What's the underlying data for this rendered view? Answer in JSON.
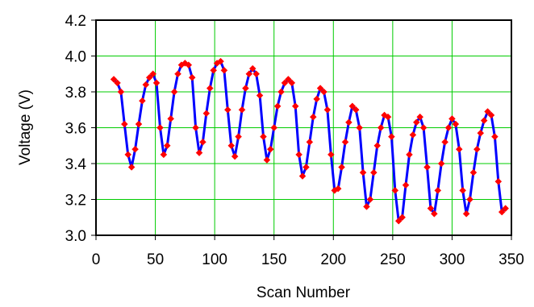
{
  "chart_data": {
    "type": "scatter",
    "title": "",
    "xlabel": "Scan Number",
    "ylabel": "Voltage (V)",
    "xlim": [
      0,
      350
    ],
    "ylim": [
      3.0,
      4.2
    ],
    "xticks": [
      "0",
      "50",
      "100",
      "150",
      "200",
      "250",
      "300",
      "350"
    ],
    "yticks": [
      "3.0",
      "3.2",
      "3.4",
      "3.6",
      "3.8",
      "4.0",
      "4.2"
    ],
    "grid": true,
    "legend": "none",
    "colors": {
      "line": "#0000ff",
      "marker": "#ff0000",
      "grid": "#00cc00",
      "frame": "#000000"
    },
    "series": [
      {
        "marker": "diamond",
        "connected": true,
        "x": [
          15,
          18,
          21,
          24,
          27,
          30,
          33,
          36,
          39,
          42,
          45,
          48,
          51,
          54,
          57,
          60,
          63,
          66,
          69,
          72,
          75,
          78,
          81,
          84,
          87,
          90,
          93,
          96,
          99,
          102,
          105,
          108,
          111,
          114,
          117,
          120,
          123,
          126,
          129,
          132,
          135,
          138,
          141,
          144,
          147,
          150,
          153,
          156,
          159,
          162,
          165,
          168,
          171,
          174,
          177,
          180,
          183,
          186,
          189,
          192,
          195,
          198,
          201,
          204,
          207,
          210,
          213,
          216,
          219,
          222,
          225,
          228,
          231,
          234,
          237,
          240,
          243,
          246,
          249,
          252,
          255,
          258,
          261,
          264,
          267,
          270,
          273,
          276,
          279,
          282,
          285,
          288,
          291,
          294,
          297,
          300,
          303,
          306,
          309,
          312,
          315,
          318,
          321,
          324,
          327,
          330,
          333,
          336,
          339,
          342,
          345
        ],
        "y": [
          3.87,
          3.85,
          3.8,
          3.62,
          3.45,
          3.38,
          3.48,
          3.62,
          3.75,
          3.84,
          3.88,
          3.9,
          3.85,
          3.6,
          3.45,
          3.5,
          3.65,
          3.8,
          3.9,
          3.95,
          3.96,
          3.95,
          3.88,
          3.6,
          3.46,
          3.52,
          3.68,
          3.82,
          3.92,
          3.96,
          3.97,
          3.92,
          3.7,
          3.5,
          3.44,
          3.55,
          3.7,
          3.82,
          3.9,
          3.93,
          3.9,
          3.78,
          3.55,
          3.42,
          3.48,
          3.6,
          3.72,
          3.8,
          3.85,
          3.87,
          3.85,
          3.72,
          3.45,
          3.33,
          3.38,
          3.52,
          3.66,
          3.76,
          3.82,
          3.8,
          3.7,
          3.45,
          3.25,
          3.26,
          3.38,
          3.52,
          3.63,
          3.72,
          3.7,
          3.6,
          3.35,
          3.16,
          3.2,
          3.35,
          3.5,
          3.6,
          3.67,
          3.66,
          3.55,
          3.25,
          3.08,
          3.1,
          3.28,
          3.45,
          3.56,
          3.63,
          3.66,
          3.6,
          3.38,
          3.15,
          3.12,
          3.25,
          3.4,
          3.52,
          3.6,
          3.65,
          3.62,
          3.48,
          3.25,
          3.12,
          3.2,
          3.35,
          3.48,
          3.57,
          3.64,
          3.69,
          3.67,
          3.55,
          3.3,
          3.13,
          3.15
        ]
      }
    ]
  }
}
